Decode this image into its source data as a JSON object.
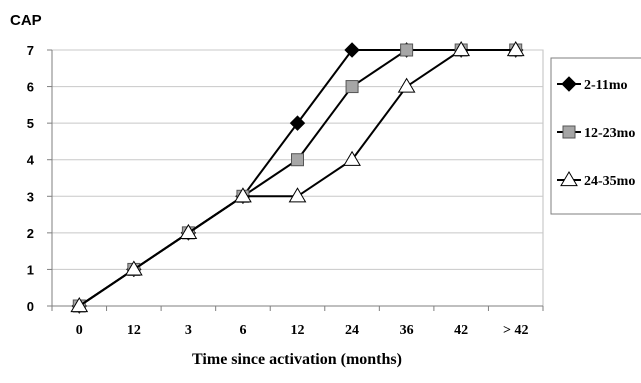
{
  "chart_data": {
    "type": "line",
    "title": "",
    "ylabel": "CAP",
    "xlabel": "Time since activation (months)",
    "categories": [
      "0",
      "12",
      "3",
      "6",
      "12",
      "24",
      "36",
      "42",
      "> 42"
    ],
    "yticks": [
      "0",
      "1",
      "2",
      "3",
      "4",
      "5",
      "6",
      "7"
    ],
    "ylim": [
      0,
      7
    ],
    "grid": true,
    "legend_position": "right",
    "series": [
      {
        "name": "2-11mo",
        "marker": "diamond",
        "fill": "#000000",
        "values": [
          0,
          1,
          2,
          3,
          5,
          7,
          7,
          7,
          7
        ]
      },
      {
        "name": "12-23mo",
        "marker": "square",
        "fill": "#a6a6a6",
        "values": [
          0,
          1,
          2,
          3,
          4,
          6,
          7,
          7,
          7
        ]
      },
      {
        "name": "24-35mo",
        "marker": "triangle",
        "fill": "#ffffff",
        "values": [
          0,
          1,
          2,
          3,
          3,
          4,
          6,
          7,
          7
        ]
      }
    ]
  }
}
